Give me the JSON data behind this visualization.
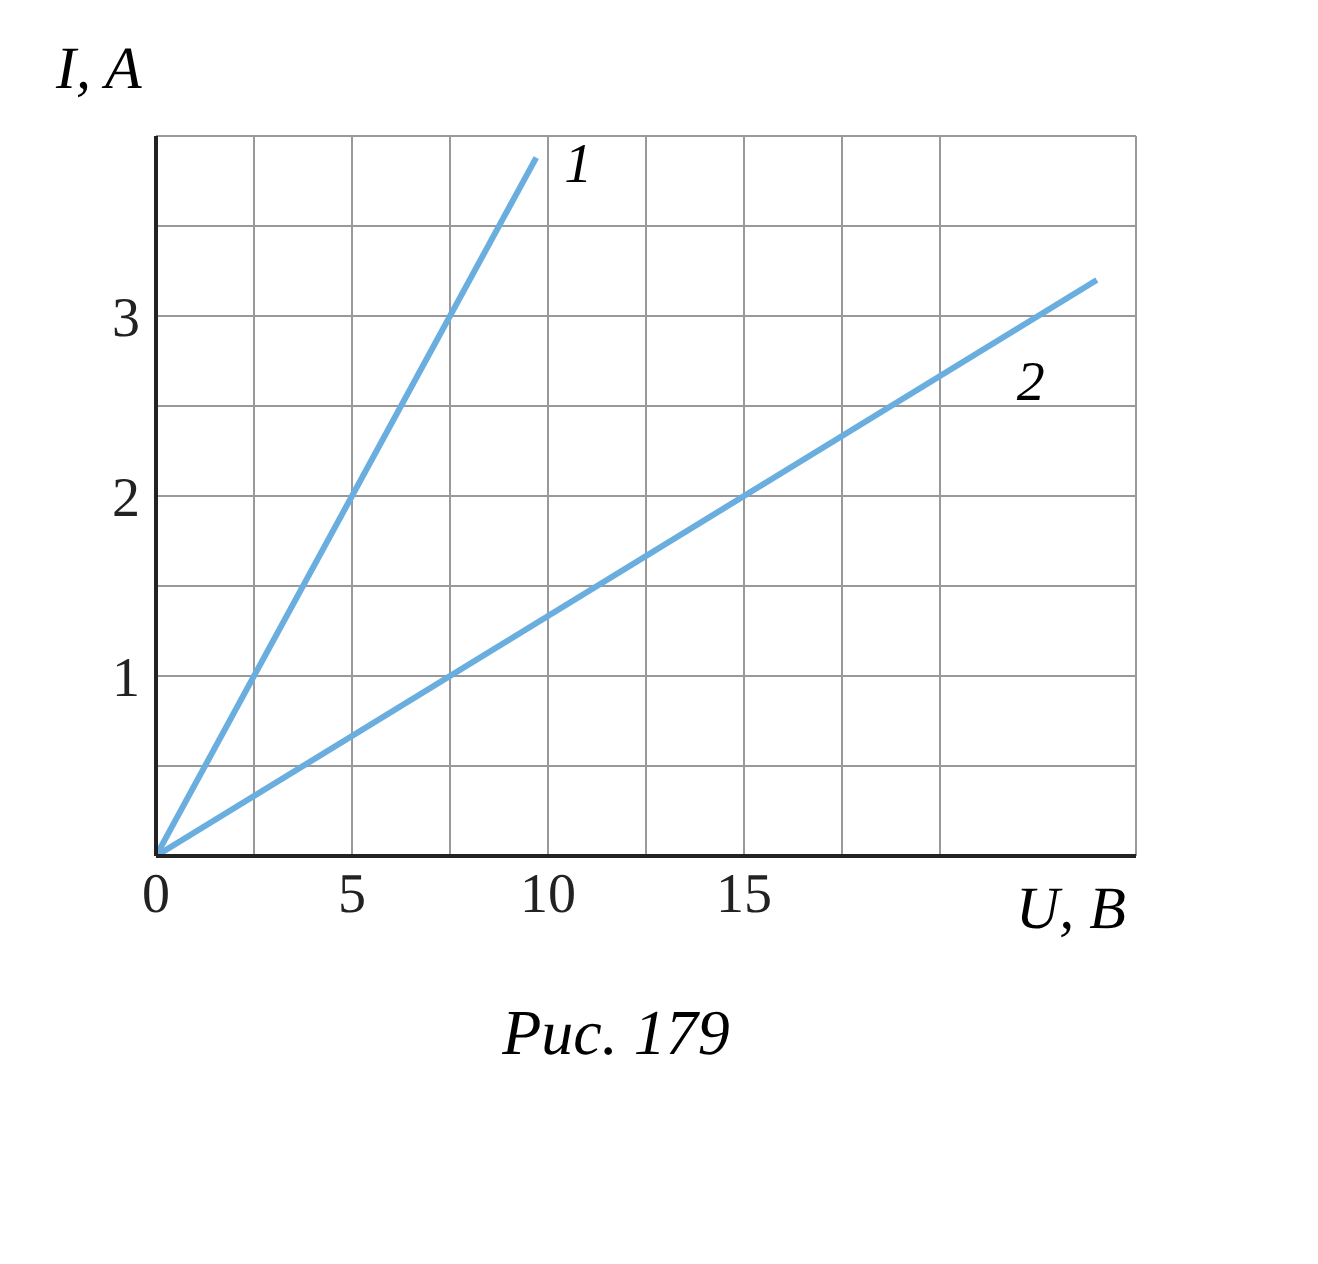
{
  "chart_data": {
    "type": "line",
    "xlabel": "U, В",
    "ylabel": "I, A",
    "annotations": [
      "Рис. 179"
    ],
    "xlim": [
      0,
      25
    ],
    "ylim": [
      0,
      4
    ],
    "xticks": [
      0,
      {
        "value": 2.5,
        "label": null
      },
      5,
      {
        "value": 7.5,
        "label": null
      },
      10,
      {
        "value": 12.5,
        "label": null
      },
      15,
      {
        "value": 17.5,
        "label": null
      },
      {
        "value": 20,
        "label": null
      }
    ],
    "yticks": [
      {
        "value": 0,
        "label": null
      },
      {
        "value": 0.5,
        "label": null
      },
      1,
      {
        "value": 1.5,
        "label": null
      },
      2,
      {
        "value": 2.5,
        "label": null
      },
      3,
      {
        "value": 3.5,
        "label": null
      }
    ],
    "grid": true,
    "marker": "none",
    "line_style": "solid",
    "series": [
      {
        "name": "1",
        "color": "#6aaee0",
        "x": [
          0,
          9.7
        ],
        "values": [
          0,
          3.88
        ]
      },
      {
        "name": "2",
        "color": "#6aaee0",
        "x": [
          0,
          24
        ],
        "values": [
          0,
          3.2
        ]
      }
    ]
  }
}
